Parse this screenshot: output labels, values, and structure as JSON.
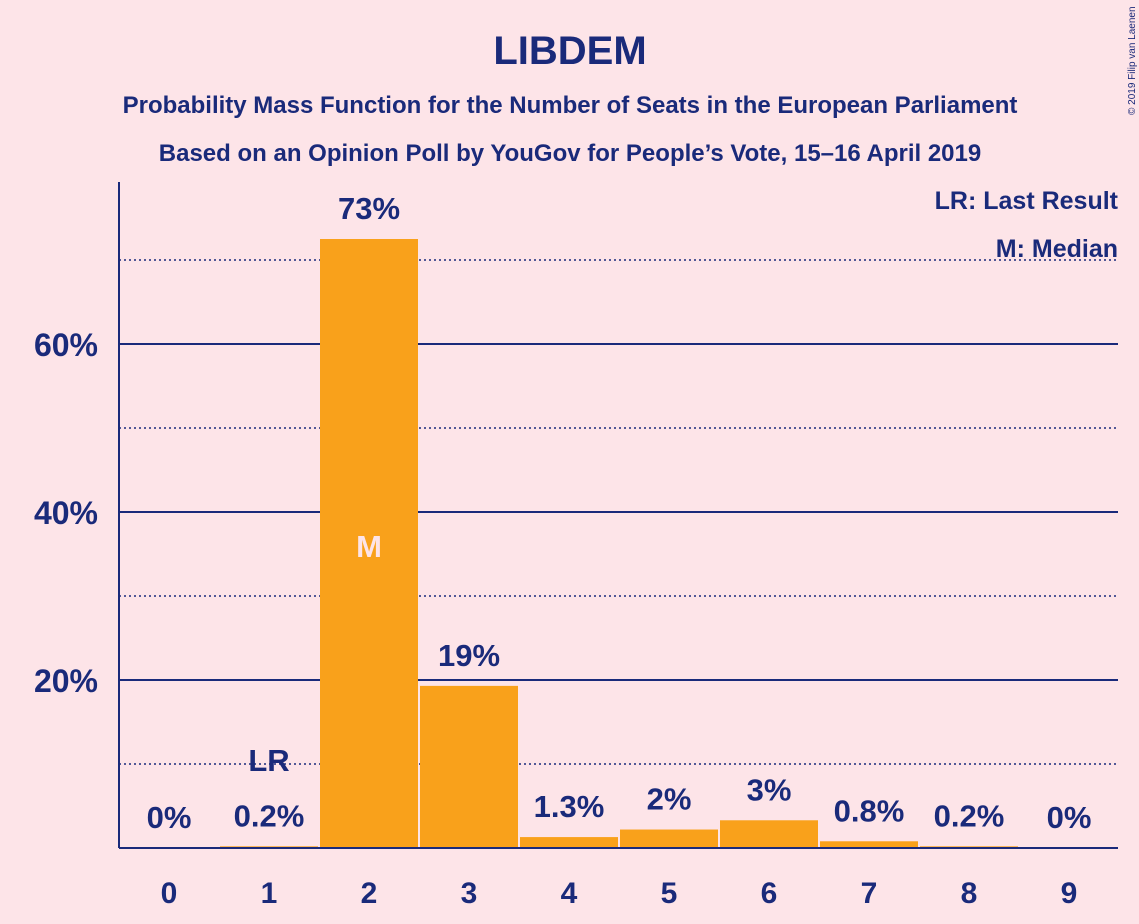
{
  "chart_data": {
    "type": "bar",
    "title": "LIBDEM",
    "subtitle_lines": [
      "Probability Mass Function for the Number of Seats in the European Parliament",
      "Based on an Opinion Poll by YouGov for People’s Vote, 15–16 April 2019"
    ],
    "categories": [
      "0",
      "1",
      "2",
      "3",
      "4",
      "5",
      "6",
      "7",
      "8",
      "9"
    ],
    "values": [
      0,
      0.2,
      72.5,
      19.3,
      1.3,
      2.2,
      3.3,
      0.8,
      0.2,
      0
    ],
    "value_labels": [
      "0%",
      "0.2%",
      "73%",
      "19%",
      "1.3%",
      "2%",
      "3%",
      "0.8%",
      "0.2%",
      "0%"
    ],
    "yticks": [
      20,
      40,
      60
    ],
    "ytick_labels": [
      "20%",
      "40%",
      "60%"
    ],
    "minor_gridlines": [
      10,
      30,
      50,
      70
    ],
    "ylim": [
      0,
      79
    ],
    "last_result_index": 1,
    "last_result_marker": "LR",
    "median_index": 2,
    "median_marker": "M",
    "legend": [
      "LR: Last Result",
      "M: Median"
    ],
    "legend_position": "top-right",
    "copyright": "© 2019 Filip van Laenen",
    "colors": {
      "background": "#fde4e8",
      "bar": "#f9a11b",
      "text": "#1a2a7a",
      "grid": "#1a2a7a"
    }
  }
}
